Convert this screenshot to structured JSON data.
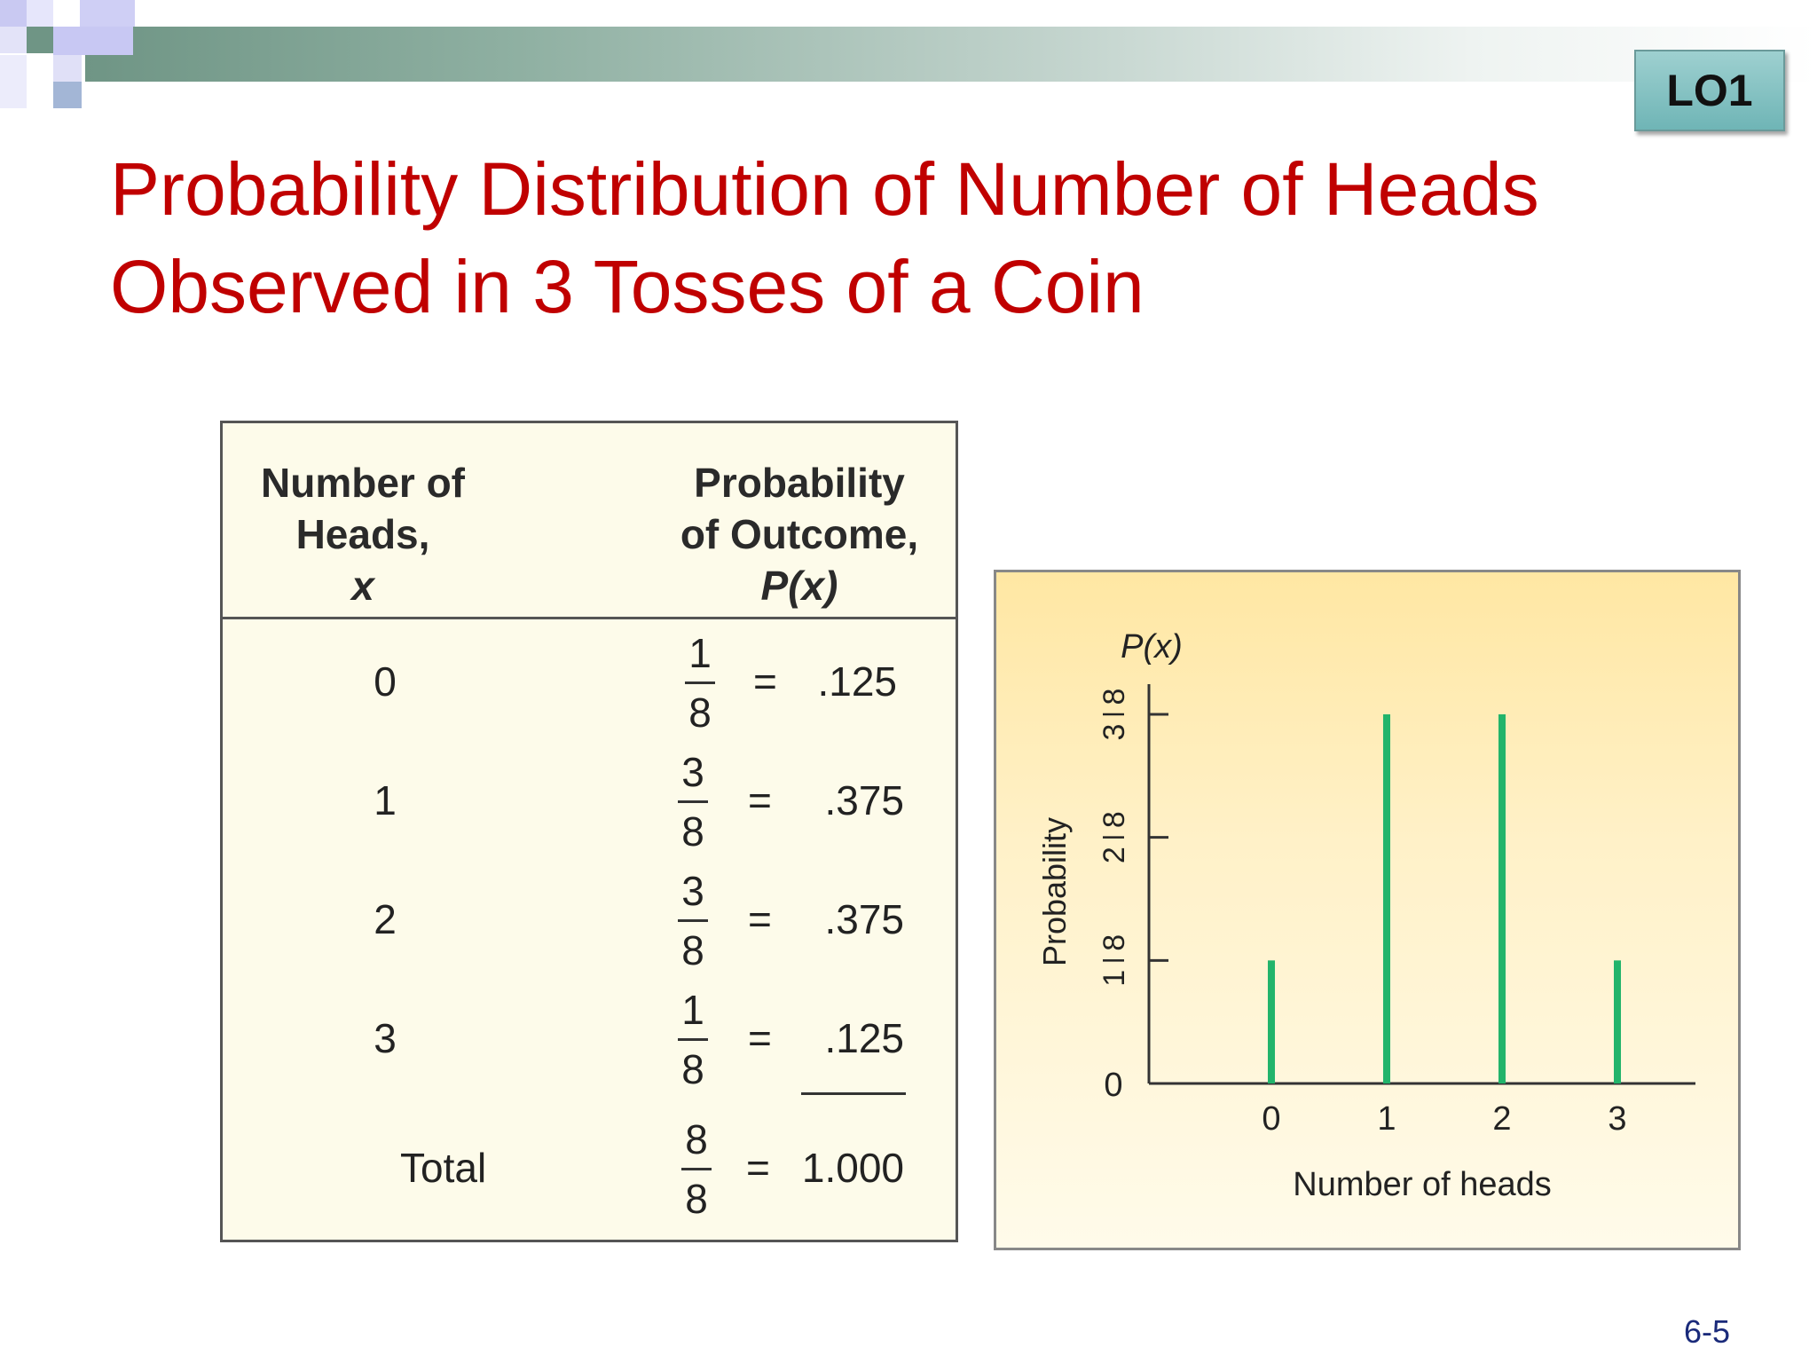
{
  "badge": "LO1",
  "title_lines": [
    "Probability Distribution of Number of Heads",
    "Observed in 3 Tosses of a Coin"
  ],
  "table": {
    "col1_header": [
      "Number of",
      "Heads,",
      "x"
    ],
    "col2_header": [
      "Probability",
      "of Outcome,",
      "P(x)"
    ],
    "rows": [
      {
        "x": "0",
        "num": "1",
        "den": "8",
        "eq": "=",
        "dec": ".125"
      },
      {
        "x": "1",
        "num": "3",
        "den": "8",
        "eq": "=",
        "dec": ".375"
      },
      {
        "x": "2",
        "num": "3",
        "den": "8",
        "eq": "=",
        "dec": ".375"
      },
      {
        "x": "3",
        "num": "1",
        "den": "8",
        "eq": "=",
        "dec": ".125"
      }
    ],
    "total": {
      "label": "Total",
      "num": "8",
      "den": "8",
      "eq": "=",
      "dec": "1.000"
    }
  },
  "chart_data": {
    "type": "bar",
    "categories": [
      "0",
      "1",
      "2",
      "3"
    ],
    "values": [
      0.125,
      0.375,
      0.375,
      0.125
    ],
    "y_label_top": "P(x)",
    "ylabel": "Probability",
    "xlabel": "Number of heads",
    "ylim": [
      0,
      0.375
    ],
    "yticks": [
      {
        "value": 0,
        "label": "0"
      },
      {
        "value": 0.125,
        "num": "1",
        "den": "8"
      },
      {
        "value": 0.25,
        "num": "2",
        "den": "8"
      },
      {
        "value": 0.375,
        "num": "3",
        "den": "8"
      }
    ],
    "bar_color": "#22b46b",
    "grid": false
  },
  "page_number": "6-5",
  "colors": {
    "title": "#c00000",
    "table_bg": "#fdfbea",
    "header_bar": "#6f9585"
  }
}
